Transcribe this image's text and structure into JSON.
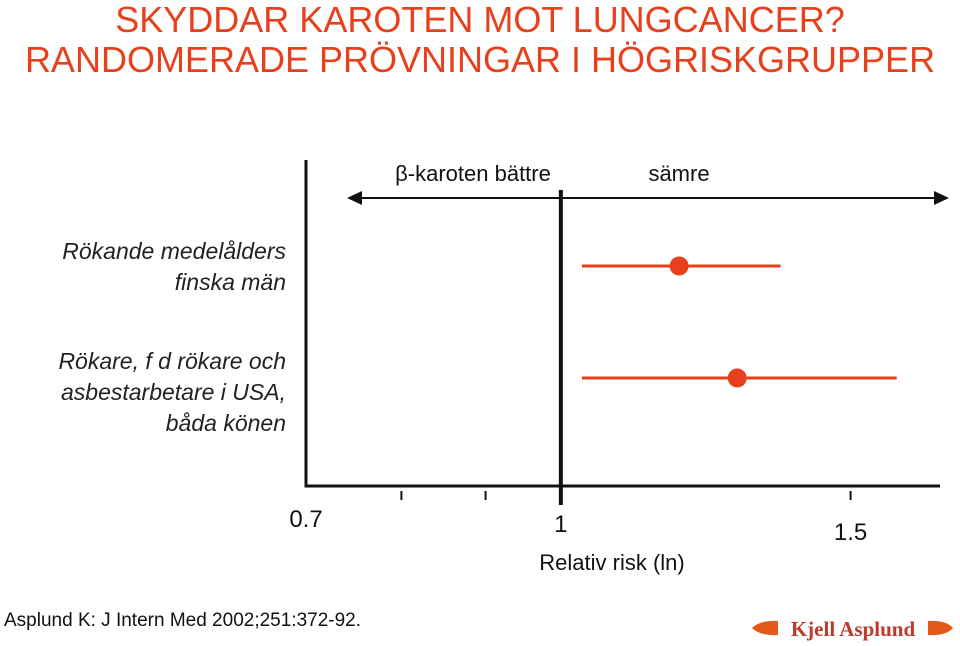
{
  "title_lines": [
    "SKYDDAR KAROTEN MOT LUNGCANCER?",
    "RANDOMERADE PRÖVNINGAR I HÖGRISKGRUPPER"
  ],
  "colors": {
    "accent": "#e8401c",
    "axis": "#111111",
    "logo": "#e35a18",
    "logo_text": "#c0392b"
  },
  "chart_data": {
    "type": "scatter",
    "subtype": "forest-plot",
    "xlabel": "Relativ risk (ln)",
    "x_scale": "log",
    "xlim": [
      0.7,
      1.7
    ],
    "x_ticks": [
      {
        "value": 0.7,
        "label": "0.7"
      },
      {
        "value": 0.8,
        "label": ""
      },
      {
        "value": 0.9,
        "label": ""
      },
      {
        "value": 1.0,
        "label": "1"
      },
      {
        "value": 1.5,
        "label": "1.5"
      }
    ],
    "reference_line": 1.0,
    "direction_labels": {
      "left": "β-karoten bättre",
      "right": "sämre"
    },
    "studies": [
      {
        "label_lines": [
          "Rökande medelålders",
          "finska män"
        ],
        "estimate": 1.18,
        "ci_low": 1.03,
        "ci_high": 1.36
      },
      {
        "label_lines": [
          "Rökare, f d rökare och",
          "asbestarbetare i USA,",
          "båda könen"
        ],
        "estimate": 1.28,
        "ci_low": 1.03,
        "ci_high": 1.6
      }
    ],
    "grid": false
  },
  "footer": {
    "citation": "Asplund K: J Intern Med 2002;251:372-92.",
    "logo_text": "Kjell Asplund"
  }
}
